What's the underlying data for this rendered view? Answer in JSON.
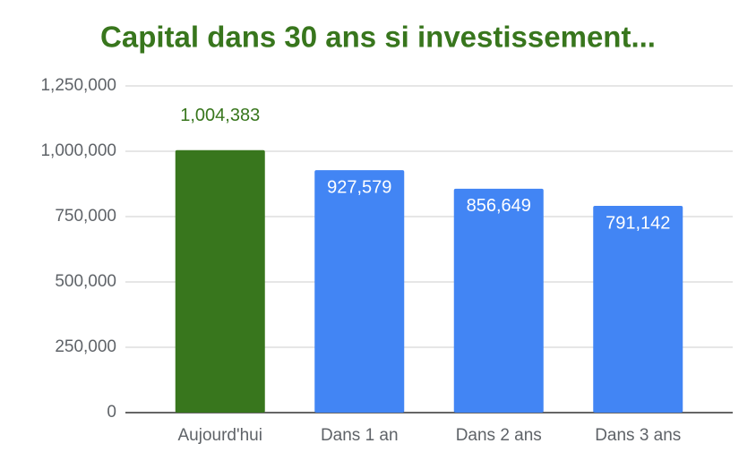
{
  "chart_data": {
    "type": "bar",
    "title": "Capital dans 30 ans si investissement...",
    "categories": [
      "Aujourd'hui",
      "Dans 1 an",
      "Dans 2 ans",
      "Dans 3 ans"
    ],
    "values": [
      1004383,
      927579,
      856649,
      791142
    ],
    "value_labels": [
      "1,004,383",
      "927,579",
      "856,649",
      "791,142"
    ],
    "colors": [
      "#38761d",
      "#4285f4",
      "#4285f4",
      "#4285f4"
    ],
    "ylim": [
      0,
      1250000
    ],
    "yticks": [
      0,
      {
        "value": 250000,
        "label": "250,000"
      },
      {
        "value": 500000,
        "label": "500,000"
      },
      {
        "value": 750000,
        "label": "750,000"
      },
      {
        "value": 1000000,
        "label": "1,000,000"
      },
      {
        "value": 1250000,
        "label": "1,250,000"
      }
    ],
    "grid": true
  }
}
